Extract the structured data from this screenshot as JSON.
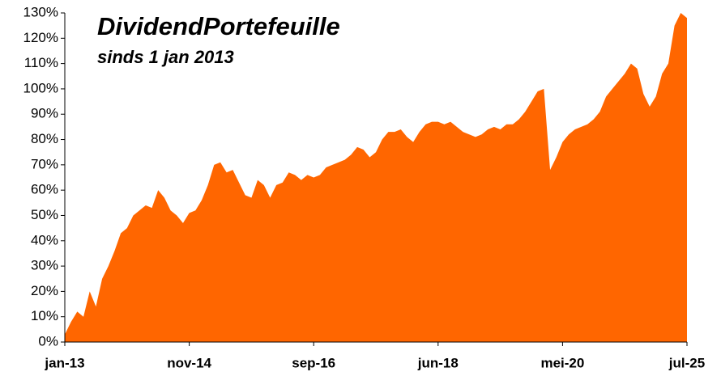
{
  "chart_data": {
    "type": "area",
    "title": "DividendPortefeuille",
    "subtitle": "sinds 1 jan 2013",
    "color": "#ff6600",
    "grid": false,
    "ylim": [
      0,
      130
    ],
    "yticks": [
      {
        "value": 0,
        "label": "0%"
      },
      {
        "value": 10,
        "label": "10%"
      },
      {
        "value": 20,
        "label": "20%"
      },
      {
        "value": 30,
        "label": "30%"
      },
      {
        "value": 40,
        "label": "40%"
      },
      {
        "value": 50,
        "label": "50%"
      },
      {
        "value": 60,
        "label": "60%"
      },
      {
        "value": 70,
        "label": "70%"
      },
      {
        "value": 80,
        "label": "80%"
      },
      {
        "value": 90,
        "label": "90%"
      },
      {
        "value": 100,
        "label": "100%"
      },
      {
        "value": 110,
        "label": "110%"
      },
      {
        "value": 120,
        "label": "120%"
      },
      {
        "value": 130,
        "label": "130%"
      }
    ],
    "categories": [
      "jan-13",
      null,
      null,
      null,
      null,
      null,
      null,
      null,
      null,
      null,
      null,
      null,
      null,
      null,
      null,
      null,
      null,
      null,
      null,
      null,
      "nov-14",
      null,
      null,
      null,
      null,
      null,
      null,
      null,
      null,
      null,
      null,
      null,
      null,
      null,
      null,
      null,
      null,
      null,
      null,
      null,
      "sep-16",
      null,
      null,
      null,
      null,
      null,
      null,
      null,
      null,
      null,
      null,
      null,
      null,
      null,
      null,
      null,
      null,
      null,
      null,
      null,
      "jun-18",
      null,
      null,
      null,
      null,
      null,
      null,
      null,
      null,
      null,
      null,
      null,
      null,
      null,
      null,
      null,
      null,
      null,
      null,
      null,
      "mei-20",
      null,
      null,
      null,
      null,
      null,
      null,
      null,
      null,
      null,
      null,
      null,
      null,
      null,
      null,
      null,
      null,
      null,
      null,
      null,
      "jul-25"
    ],
    "values": [
      3,
      8,
      12,
      10,
      20,
      14,
      25,
      30,
      36,
      43,
      45,
      50,
      52,
      54,
      53,
      60,
      57,
      52,
      50,
      47,
      51,
      52,
      56,
      62,
      70,
      71,
      67,
      68,
      63,
      58,
      57,
      64,
      62,
      57,
      62,
      63,
      67,
      66,
      64,
      66,
      65,
      66,
      69,
      70,
      71,
      72,
      74,
      77,
      76,
      73,
      75,
      80,
      83,
      83,
      84,
      81,
      79,
      83,
      86,
      87,
      87,
      86,
      87,
      85,
      83,
      82,
      81,
      82,
      84,
      85,
      84,
      86,
      86,
      88,
      91,
      95,
      99,
      100,
      68,
      73,
      79,
      82,
      84,
      85,
      86,
      88,
      91,
      97,
      100,
      103,
      106,
      110,
      108,
      98,
      93,
      97,
      106,
      110,
      125,
      130,
      128
    ]
  }
}
